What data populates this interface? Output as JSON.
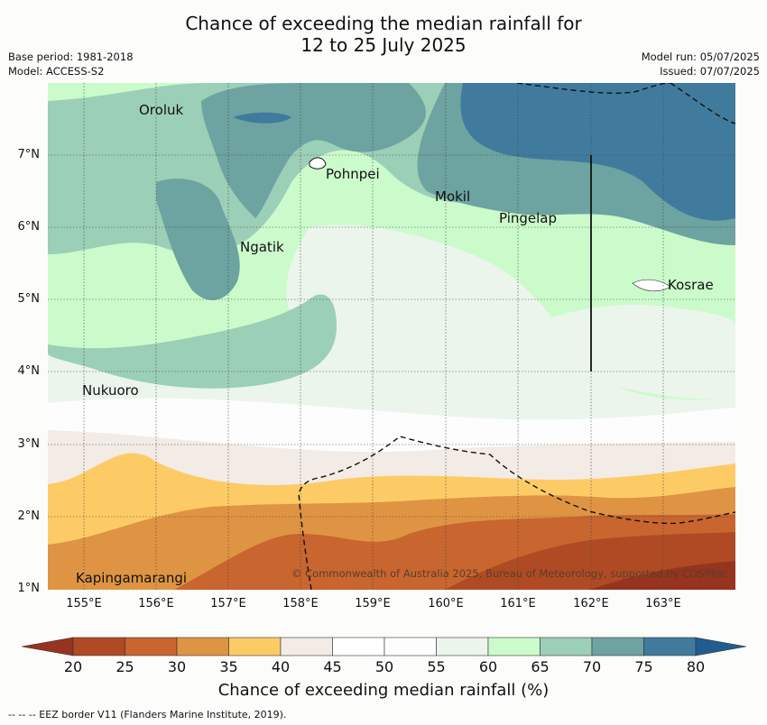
{
  "title": {
    "line1": "Chance of exceeding the median rainfall for",
    "line2": "12 to 25 July 2025"
  },
  "meta": {
    "base_period": "Base period: 1981-2018",
    "model": "Model: ACCESS-S2",
    "model_run": "Model run: 05/07/2025",
    "issued": "Issued: 07/07/2025"
  },
  "axes": {
    "lat_labels": [
      "7°N",
      "6°N",
      "5°N",
      "4°N",
      "3°N",
      "2°N",
      "1°N"
    ],
    "lon_labels": [
      "155°E",
      "156°E",
      "157°E",
      "158°E",
      "159°E",
      "160°E",
      "161°E",
      "162°E",
      "163°E"
    ]
  },
  "places": [
    {
      "name": "Oroluk"
    },
    {
      "name": "Pohnpei"
    },
    {
      "name": "Mokil"
    },
    {
      "name": "Pingelap"
    },
    {
      "name": "Ngatik"
    },
    {
      "name": "Kosrae"
    },
    {
      "name": "Nukuoro"
    },
    {
      "name": "Kapingamarangi"
    }
  ],
  "copyright": "© Commonwealth of Australia 2025, Bureau of Meteorology, supported by COSPPac",
  "colorbar": {
    "ticks": [
      "20",
      "25",
      "30",
      "35",
      "40",
      "45",
      "50",
      "55",
      "60",
      "65",
      "70",
      "75",
      "80"
    ],
    "colors": [
      "#b04a24",
      "#c9652f",
      "#df9443",
      "#fdcb66",
      "#f2ebe6",
      "#ffffff",
      "#fcfdfc",
      "#ebf5ec",
      "#cbfbcb",
      "#9ccfb7",
      "#6da3a1",
      "#407b9d"
    ],
    "under_color": "#963420",
    "over_color": "#215c8e",
    "label": "Chance of exceeding median rainfall (%)"
  },
  "eez_note": "--  --  -- EEZ border V11 (Flanders Marine Institute, 2019)."
}
